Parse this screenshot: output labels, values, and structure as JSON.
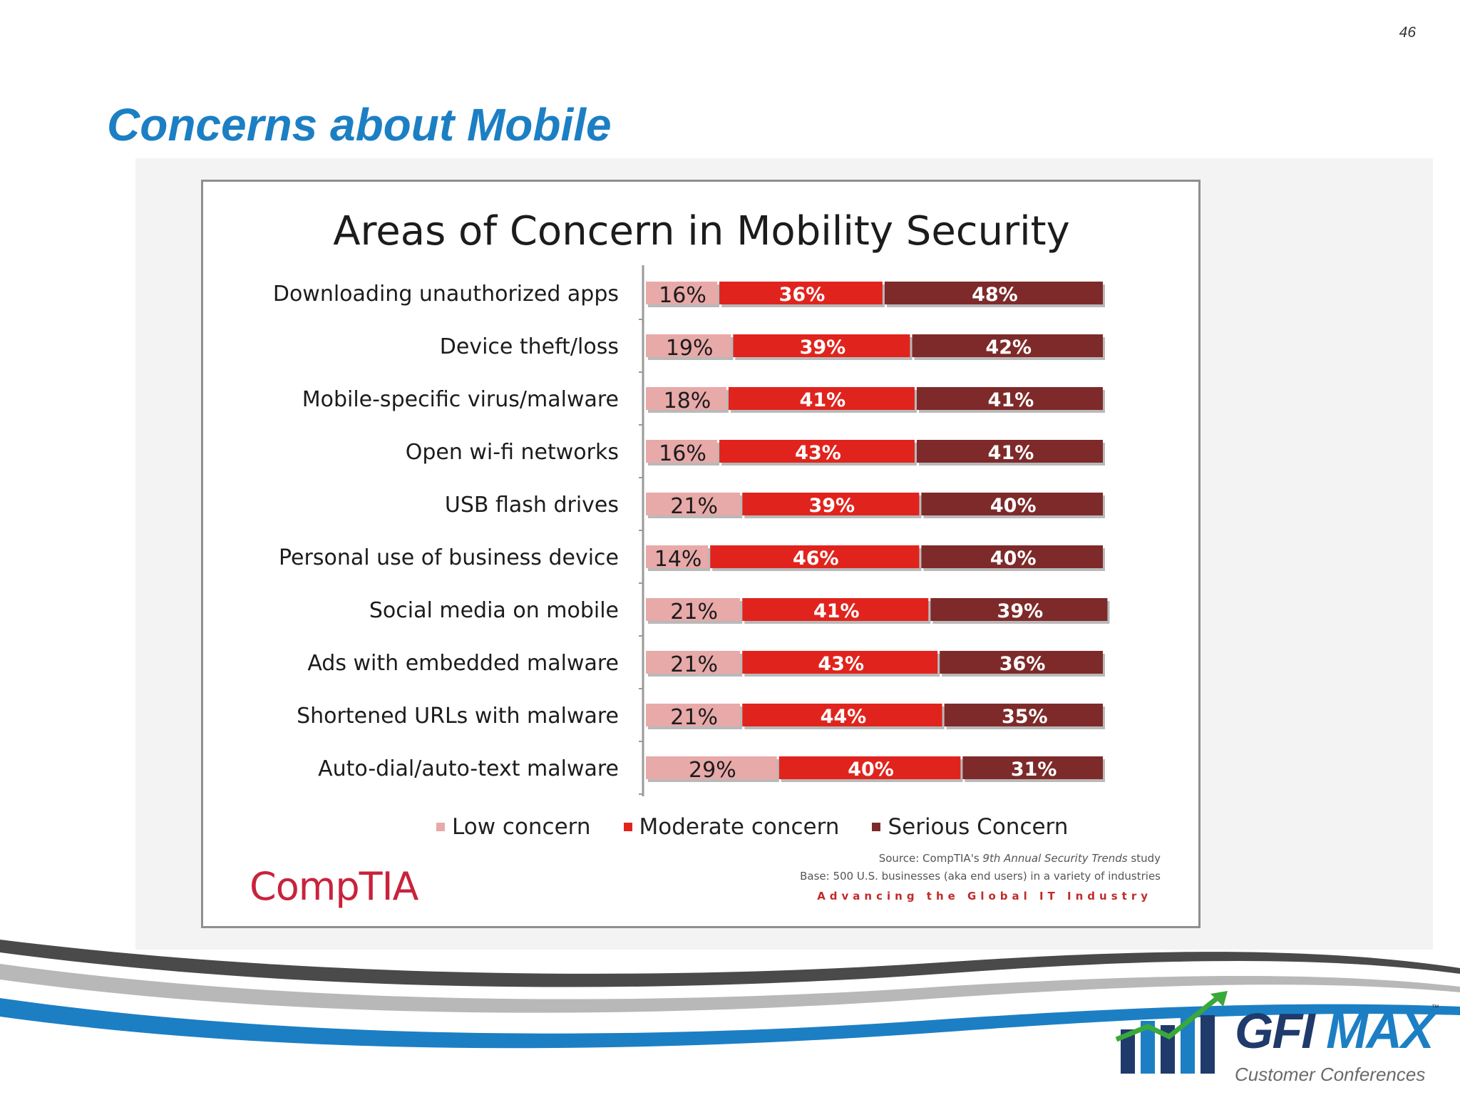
{
  "page": {
    "number": "46",
    "title": "Concerns about Mobile"
  },
  "chart_data": {
    "type": "bar",
    "orientation": "horizontal",
    "stacked": true,
    "title": "Areas of Concern in Mobility Security",
    "categories": [
      "Downloading unauthorized apps",
      "Device theft/loss",
      "Mobile-specific virus/malware",
      "Open wi-fi networks",
      "USB flash drives",
      "Personal use of business device",
      "Social media on mobile",
      "Ads with embedded malware",
      "Shortened URLs with malware",
      "Auto-dial/auto-text malware"
    ],
    "series": [
      {
        "name": "Low concern",
        "color": "#e8a9a9",
        "values": [
          16,
          19,
          18,
          16,
          21,
          14,
          21,
          21,
          21,
          29
        ]
      },
      {
        "name": "Moderate concern",
        "color": "#e0241d",
        "values": [
          36,
          39,
          41,
          43,
          39,
          46,
          41,
          43,
          44,
          40
        ]
      },
      {
        "name": "Serious Concern",
        "color": "#7e2a2a",
        "values": [
          48,
          42,
          41,
          41,
          40,
          40,
          39,
          36,
          35,
          31
        ]
      }
    ],
    "value_suffix": "%",
    "xlim": [
      0,
      100
    ],
    "legend_position": "bottom",
    "grid": false
  },
  "source": {
    "prefix": "Source: CompTIA's ",
    "study": "9th Annual Security Trends",
    "suffix": " study",
    "base": "Base: 500 U.S. businesses (aka end users) in a variety of industries",
    "tagline": "Advancing the Global IT Industry"
  },
  "logos": {
    "comptia": "CompTIA",
    "gfi": "GFI",
    "max": "MAX",
    "trademark": "™",
    "conference": "Customer Conferences"
  },
  "colors": {
    "title_blue": "#1c7fc4",
    "gfi_navy": "#1f3a6b",
    "gfi_green": "#3aa83a"
  }
}
